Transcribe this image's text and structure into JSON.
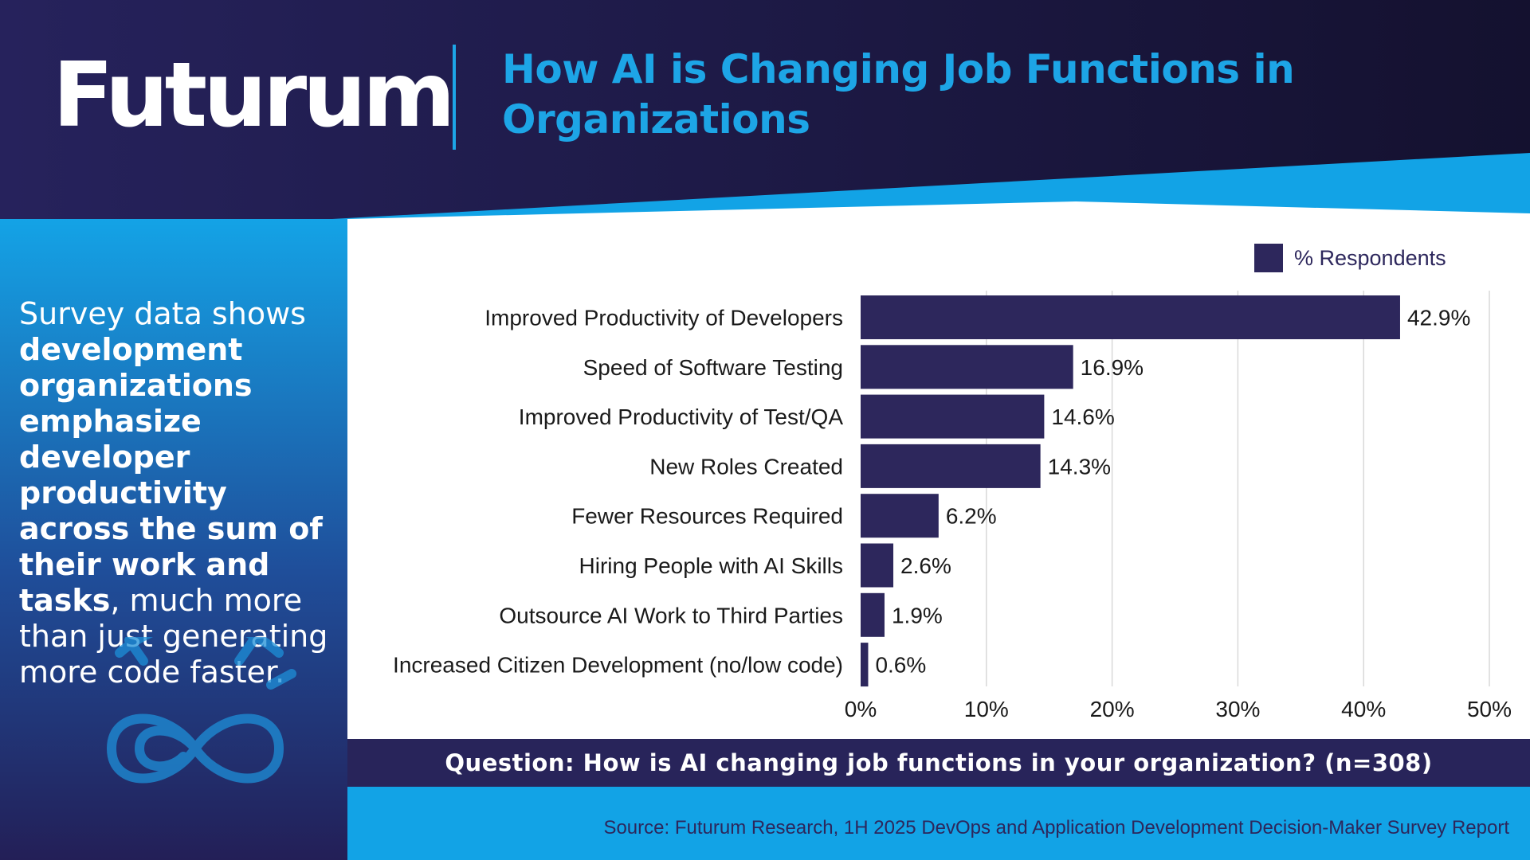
{
  "header": {
    "brand": "Futurum",
    "title": "How AI is Changing Job Functions in Organizations"
  },
  "sidebar": {
    "text_parts": [
      {
        "text": "Survey data shows ",
        "bold": false
      },
      {
        "text": "development organizations emphasize developer productivity across the sum of their work and tasks",
        "bold": true
      },
      {
        "text": ", much more than just generating more code faster.",
        "bold": false
      }
    ],
    "icon": "gear-infinity-icon"
  },
  "legend": {
    "label": "% Respondents"
  },
  "chart_data": {
    "type": "bar",
    "orientation": "horizontal",
    "categories": [
      "Improved Productivity of Developers",
      "Speed of Software Testing",
      "Improved Productivity of Test/QA",
      "New Roles Created",
      "Fewer Resources Required",
      "Hiring People with AI Skills",
      "Outsource AI Work to Third Parties",
      "Increased Citizen Development (no/low code)"
    ],
    "series": [
      {
        "name": "% Respondents",
        "values": [
          42.9,
          16.9,
          14.6,
          14.3,
          6.2,
          2.6,
          1.9,
          0.6
        ],
        "labels": [
          "42.9%",
          "16.9%",
          "14.6%",
          "14.3%",
          "6.2%",
          "2.6%",
          "1.9%",
          "0.6%"
        ]
      }
    ],
    "xlim": [
      0,
      50
    ],
    "xticks": [
      0,
      10,
      20,
      30,
      40,
      50
    ],
    "xtick_labels": [
      "0%",
      "10%",
      "20%",
      "30%",
      "40%",
      "50%"
    ],
    "grid": true,
    "legend_position": "top-right"
  },
  "footer": {
    "question": "Question: How is AI changing job functions in your organization? (n=308)",
    "source": "Source: Futurum Research, 1H 2025 DevOps and Application Development Decision-Maker Survey Report"
  },
  "colors": {
    "navy": "#1f1c4f",
    "bar": "#2d275c",
    "accent_blue": "#1da5e6",
    "grid": "#d9d9d9"
  }
}
